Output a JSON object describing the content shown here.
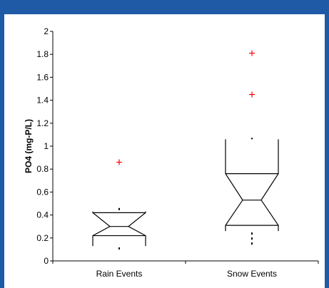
{
  "colors": {
    "frame": "#1f5aa6",
    "panel": "#ffffff",
    "box": "#000000",
    "outlier": "#ff0000"
  },
  "chart_data": {
    "type": "box",
    "title": "",
    "xlabel": "",
    "ylabel": "PO4 (mg-P/L)",
    "ylim": [
      0,
      2
    ],
    "yticks": [
      0,
      0.2,
      0.4,
      0.6,
      0.8,
      1,
      1.2,
      1.4,
      1.6,
      1.8,
      2
    ],
    "ytick_labels": [
      "0",
      "0.2",
      "0.4",
      "0.6",
      "0.8",
      "1",
      "1.2",
      "1.4",
      "1.6",
      "1.8",
      "2"
    ],
    "grid": false,
    "notched": true,
    "categories": [
      "Rain Events",
      "Snow Events"
    ],
    "series": [
      {
        "category": "Rain Events",
        "whisker_low": 0.1,
        "q1": 0.13,
        "notch_low": 0.22,
        "median": 0.3,
        "notch_high": 0.42,
        "q3": 0.43,
        "whisker_high": 0.48,
        "outliers": [
          0.86
        ]
      },
      {
        "category": "Snow Events",
        "whisker_low": 0.14,
        "q1": 0.26,
        "notch_low": 0.31,
        "median": 0.53,
        "notch_high": 0.76,
        "q3": 1.06,
        "whisker_high": 1.06,
        "outliers": [
          1.45,
          1.81
        ]
      }
    ]
  }
}
